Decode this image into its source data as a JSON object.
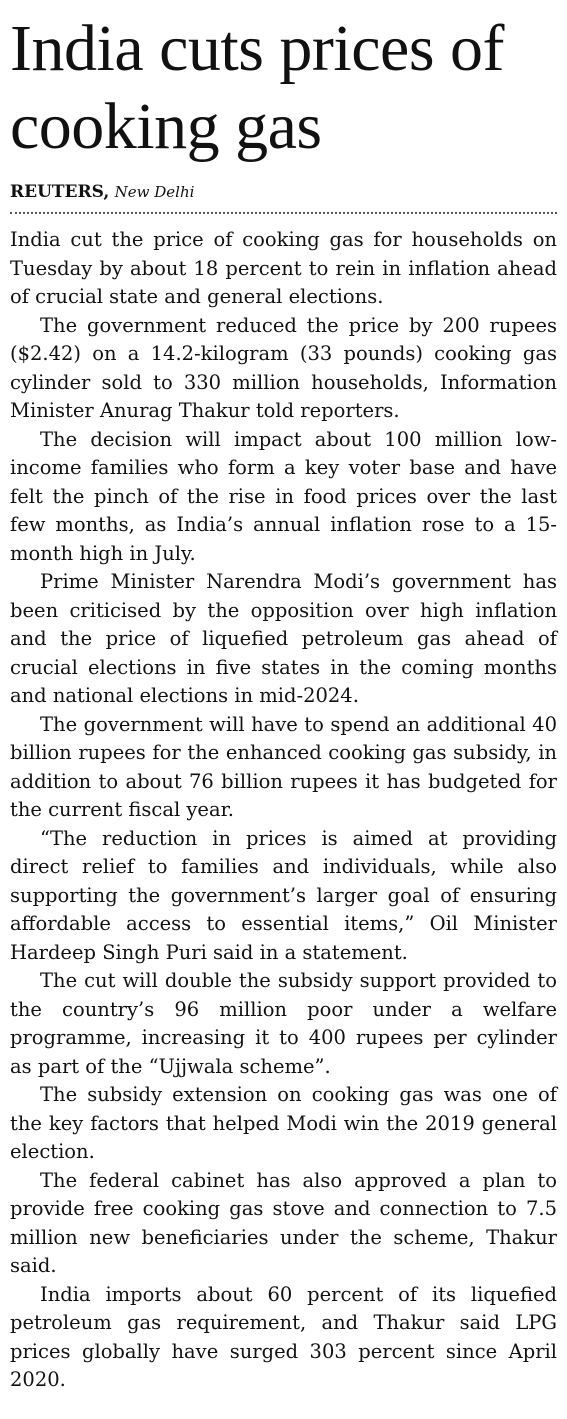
{
  "article": {
    "headline": "India cuts prices of cooking gas",
    "byline": {
      "agency": "REUTERS,",
      "location": "New Delhi"
    },
    "paragraphs": [
      "India cut the price of cooking gas for households on Tuesday by about 18 percent to rein in inflation ahead of crucial state and general elections.",
      "The government reduced the price by 200 rupees ($2.42) on a 14.2-kilogram (33 pounds) cooking gas cylinder sold to 330 million households, Information Minister Anurag Thakur told reporters.",
      "The decision will impact about 100 million low-income families who form a key voter base and have felt the pinch of the rise in food prices over the last few months, as India’s annual inflation rose to a 15-month high in July.",
      "Prime Minister Narendra Modi’s government has been criticised by the opposition over high inflation and the price of liquefied petroleum gas ahead of crucial elections in five states in the coming months and national elections in mid-2024.",
      "The government will have to spend an additional 40 billion rupees for the enhanced cooking gas subsidy, in addition to about 76 billion rupees it has budgeted for the current fiscal year.",
      "“The reduction in prices is aimed at providing direct relief to families and individuals, while also supporting the government’s larger goal of ensuring affordable access to essential items,” Oil Minister Hardeep Singh Puri said in a statement.",
      "The cut will double the subsidy support provided to the country’s 96 million poor under a welfare programme, increasing it to 400 rupees per cylinder as part of the “Ujjwala scheme”.",
      "The subsidy extension on cooking gas was one of the key factors that helped Modi win the 2019 general election.",
      "The federal cabinet has also approved a plan to provide free cooking gas stove and connection to 7.5 million new beneficiaries under the scheme, Thakur said.",
      "India imports about 60 percent of its liquefied petroleum gas requirement, and Thakur said LPG prices globally have surged 303 percent since April 2020."
    ]
  }
}
